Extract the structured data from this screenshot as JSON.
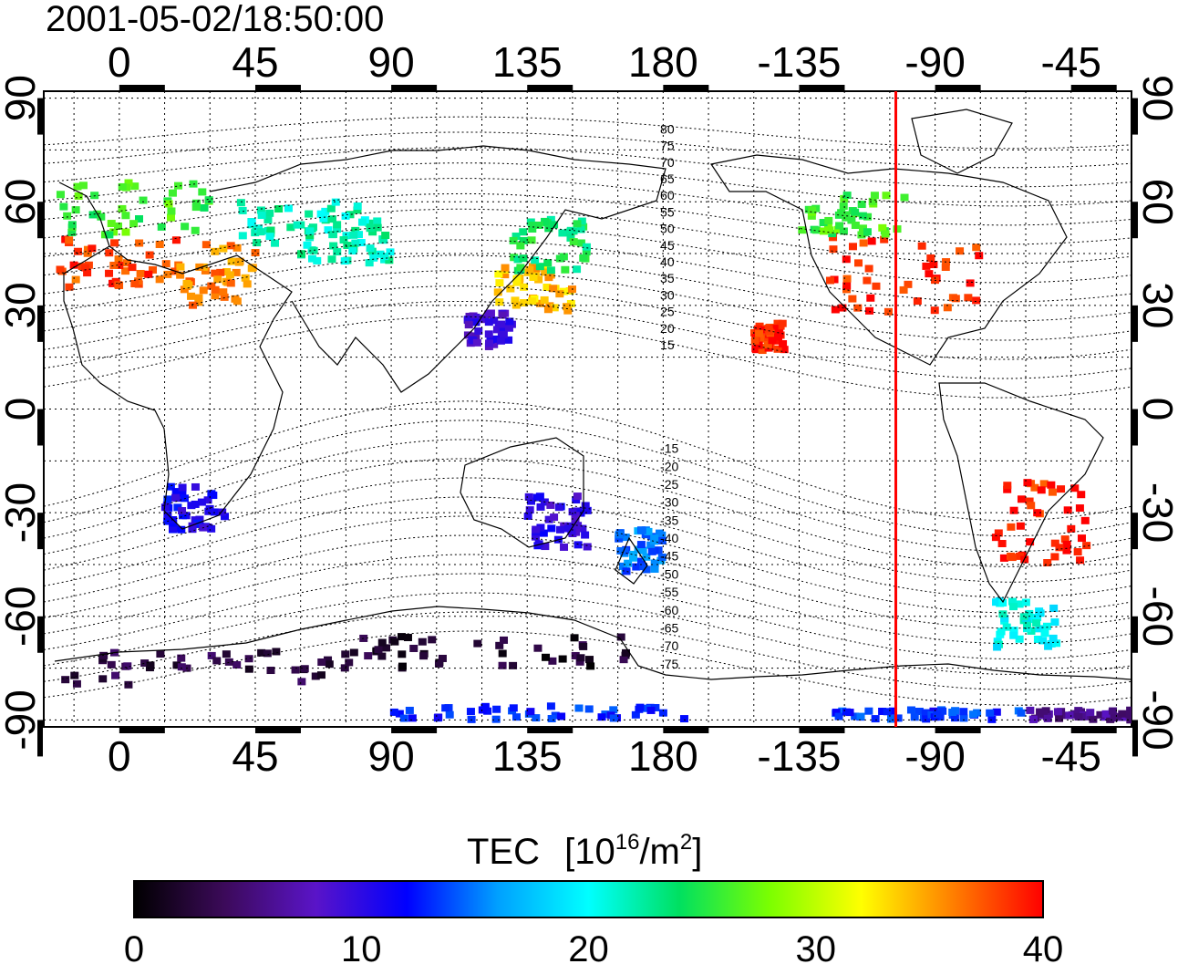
{
  "timestamp": "2001-05-02/18:50:00",
  "map": {
    "lon_ticks_labels": [
      "0",
      "45",
      "90",
      "135",
      "180",
      "-135",
      "-90",
      "-45"
    ],
    "lon_ticks_values": [
      0,
      45,
      90,
      135,
      180,
      225,
      270,
      315
    ],
    "lat_ticks_labels": [
      "90",
      "60",
      "30",
      "0",
      "-30",
      "-60",
      "-90"
    ],
    "lat_ticks_values": [
      90,
      60,
      30,
      0,
      -30,
      -60,
      -90
    ],
    "lon_range": [
      -25,
      335
    ],
    "lat_range": [
      -92,
      92
    ],
    "grid": true,
    "marker_lon": 257,
    "marker_color": "#ff0000",
    "maglat_labels": [
      "80",
      "75",
      "70",
      "65",
      "60",
      "55",
      "50",
      "45",
      "40",
      "35",
      "30",
      "25",
      "20",
      "15",
      "-15",
      "-20",
      "-25",
      "-30",
      "-35",
      "-40",
      "-45",
      "-50",
      "-55",
      "-60",
      "-65",
      "-70",
      "-75"
    ],
    "maglat_values": [
      80,
      75,
      70,
      65,
      60,
      55,
      50,
      45,
      40,
      35,
      30,
      25,
      20,
      15,
      -15,
      -20,
      -25,
      -30,
      -35,
      -40,
      -45,
      -50,
      -55,
      -60,
      -65,
      -70,
      -75
    ]
  },
  "colorbar": {
    "title": "TEC",
    "unit_base": "[10",
    "unit_exp": "16",
    "unit_mid": "/m",
    "unit_exp2": "2",
    "unit_end": "]",
    "tick_labels": [
      "0",
      "10",
      "20",
      "30",
      "40"
    ],
    "tick_values": [
      0,
      10,
      20,
      30,
      40
    ],
    "range": [
      0,
      40
    ],
    "stops": [
      "#000000",
      "#3c0a5a",
      "#5a14c8",
      "#0000ff",
      "#00a0ff",
      "#00ffff",
      "#00e060",
      "#7cff00",
      "#ffff00",
      "#ff8000",
      "#ff0000"
    ]
  },
  "chart_data": {
    "type": "heatmap",
    "description_units": "TEC [10^16/m^2]",
    "value_range": [
      0,
      40
    ],
    "regions": [
      {
        "lon": [
          -20,
          20
        ],
        "lat": [
          35,
          50
        ],
        "tec": 38
      },
      {
        "lon": [
          -20,
          30
        ],
        "lat": [
          50,
          66
        ],
        "tec": 26
      },
      {
        "lon": [
          20,
          45
        ],
        "lat": [
          30,
          48
        ],
        "tec": 36
      },
      {
        "lon": [
          40,
          80
        ],
        "lat": [
          48,
          60
        ],
        "tec": 22
      },
      {
        "lon": [
          60,
          90
        ],
        "lat": [
          42,
          55
        ],
        "tec": 22
      },
      {
        "lon": [
          125,
          150
        ],
        "lat": [
          28,
          42
        ],
        "tec": 34
      },
      {
        "lon": [
          130,
          155
        ],
        "lat": [
          40,
          55
        ],
        "tec": 24
      },
      {
        "lon": [
          115,
          130
        ],
        "lat": [
          18,
          28
        ],
        "tec": 9
      },
      {
        "lon": [
          235,
          285
        ],
        "lat": [
          28,
          50
        ],
        "tec": 39
      },
      {
        "lon": [
          225,
          260
        ],
        "lat": [
          50,
          62
        ],
        "tec": 26
      },
      {
        "lon": [
          210,
          220
        ],
        "lat": [
          17,
          25
        ],
        "tec": 39
      },
      {
        "lon": [
          290,
          320
        ],
        "lat": [
          -45,
          -20
        ],
        "tec": 39
      },
      {
        "lon": [
          15,
          35
        ],
        "lat": [
          -35,
          -22
        ],
        "tec": 11
      },
      {
        "lon": [
          135,
          155
        ],
        "lat": [
          -40,
          -25
        ],
        "tec": 10
      },
      {
        "lon": [
          165,
          180
        ],
        "lat": [
          -47,
          -35
        ],
        "tec": 15
      },
      {
        "lon": [
          290,
          310
        ],
        "lat": [
          -70,
          -55
        ],
        "tec": 20
      },
      {
        "lon": [
          -20,
          80
        ],
        "lat": [
          -80,
          -70
        ],
        "tec": 3
      },
      {
        "lon": [
          80,
          170
        ],
        "lat": [
          -75,
          -65
        ],
        "tec": 2
      },
      {
        "lon": [
          90,
          190
        ],
        "lat": [
          -90,
          -86
        ],
        "tec": 13
      },
      {
        "lon": [
          235,
          300
        ],
        "lat": [
          -90,
          -87
        ],
        "tec": 13
      },
      {
        "lon": [
          300,
          335
        ],
        "lat": [
          -90,
          -87
        ],
        "tec": 6
      }
    ]
  }
}
